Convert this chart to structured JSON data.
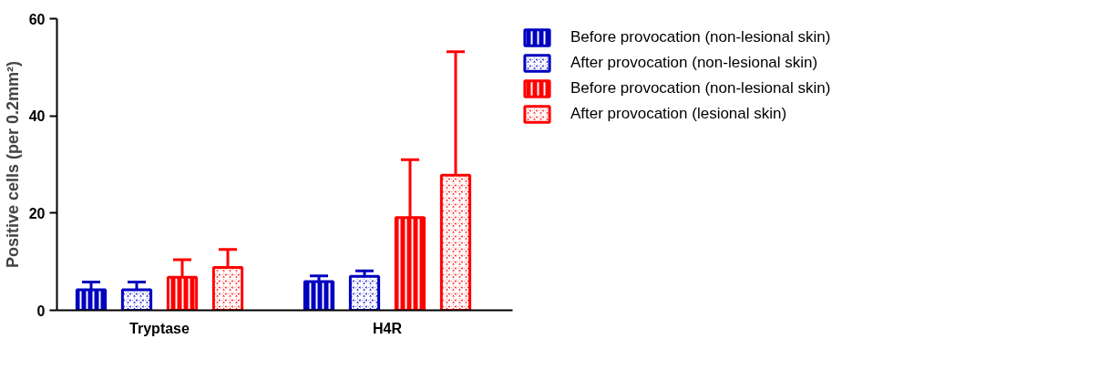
{
  "chart_data": {
    "type": "bar",
    "ylabel": "Positive cells (per 0.2mm²)",
    "categories": [
      "Tryptase",
      "H4R"
    ],
    "series": [
      {
        "name": "Before provocation (non-lesional skin)",
        "color": "#0000c0",
        "values": [
          4.2,
          5.9
        ],
        "errors": [
          [
            4.2,
            5.8
          ],
          [
            5.9,
            7.1
          ]
        ]
      },
      {
        "name": "After provocation (non-lesional skin)",
        "color": "#0000c0",
        "values": [
          4.2,
          7.0
        ],
        "errors": [
          [
            4.2,
            5.8
          ],
          [
            7.0,
            8.1
          ]
        ]
      },
      {
        "name": "Before provocation (non-lesional skin)",
        "color": "#ff0000",
        "values": [
          6.8,
          19.1
        ],
        "errors": [
          [
            6.8,
            10.4
          ],
          [
            19.1,
            31.0
          ]
        ]
      },
      {
        "name": "After provocation (lesional skin)",
        "color": "#ff0000",
        "values": [
          8.8,
          27.8
        ],
        "errors": [
          [
            8.8,
            12.5
          ],
          [
            27.8,
            53.2
          ]
        ]
      }
    ],
    "ylim": [
      0,
      60
    ],
    "yticks": [
      0,
      20,
      40,
      60
    ],
    "grid": false,
    "legend": "right"
  }
}
